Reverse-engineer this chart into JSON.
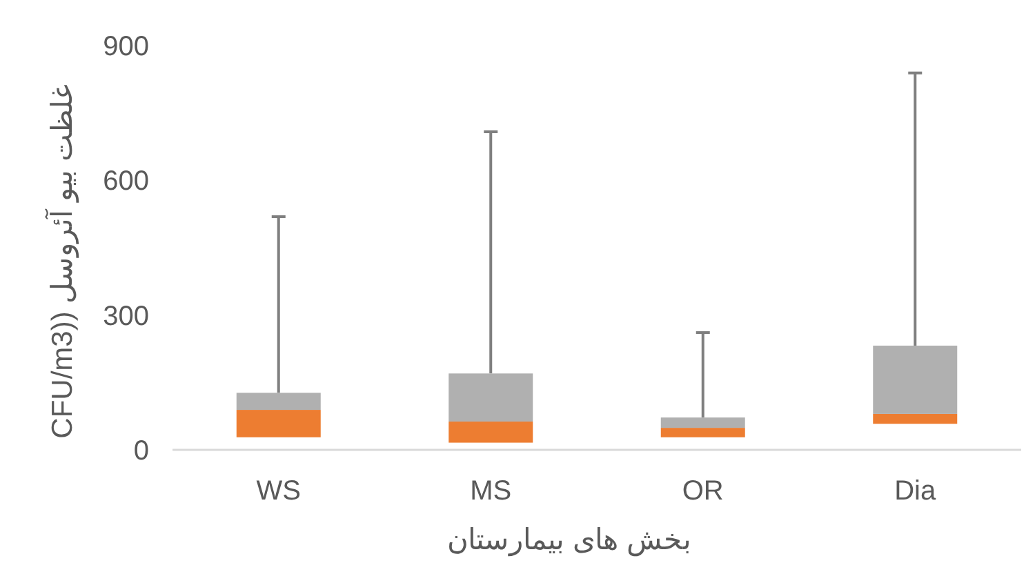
{
  "chart_data": {
    "type": "box",
    "xlabel": "بخش های بیمارستان",
    "ylabel": "غلظت بیو آئروسل ((CFU/m3",
    "categories": [
      "WS",
      "MS",
      "OR",
      "Dia"
    ],
    "boxes": [
      {
        "low": 28,
        "q1": 28,
        "median": 89,
        "q3": 127,
        "high": 519
      },
      {
        "low": 16,
        "q1": 16,
        "median": 63,
        "q3": 170,
        "high": 708
      },
      {
        "low": 28,
        "q1": 28,
        "median": 49,
        "q3": 72,
        "high": 261
      },
      {
        "low": 58,
        "q1": 58,
        "median": 80,
        "q3": 232,
        "high": 839
      }
    ],
    "colors": [
      "#ed7d31",
      "#ed7d31",
      "#ed7d31",
      "#ed7d31"
    ],
    "color": "#b0b0b0",
    "ylim": [
      0,
      900
    ],
    "yticks": [
      0,
      300,
      600,
      900
    ],
    "grid": false
  }
}
